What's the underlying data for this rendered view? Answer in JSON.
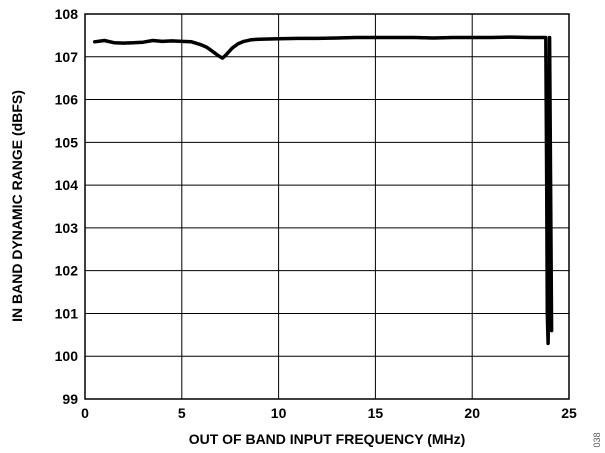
{
  "chart_data": {
    "type": "line",
    "title": "",
    "xlabel": "OUT OF BAND INPUT FREQUENCY (MHz)",
    "ylabel": "IN BAND DYNAMIC RANGE (dBFS)",
    "xlim": [
      0,
      25
    ],
    "ylim": [
      99,
      108
    ],
    "xticks": [
      0,
      5,
      10,
      15,
      20,
      25
    ],
    "yticks": [
      99,
      100,
      101,
      102,
      103,
      104,
      105,
      106,
      107,
      108
    ],
    "grid": true,
    "legend": "none",
    "series": [
      {
        "color": "#000000",
        "x": [
          0.5,
          1.0,
          1.5,
          2.0,
          2.5,
          3.0,
          3.5,
          4.0,
          4.5,
          5.0,
          5.5,
          6.0,
          6.3,
          6.6,
          6.9,
          7.1,
          7.3,
          7.6,
          7.9,
          8.2,
          8.6,
          9.0,
          10.0,
          11.0,
          12.0,
          13.0,
          14.0,
          15.0,
          16.0,
          17.0,
          18.0,
          19.0,
          20.0,
          21.0,
          22.0,
          23.0,
          23.6,
          23.8,
          23.85,
          23.88,
          23.92,
          23.95,
          24.0,
          24.05,
          24.1
        ],
        "y": [
          107.35,
          107.38,
          107.33,
          107.32,
          107.33,
          107.34,
          107.38,
          107.36,
          107.37,
          107.36,
          107.35,
          107.28,
          107.22,
          107.12,
          107.02,
          106.97,
          107.05,
          107.2,
          107.3,
          107.36,
          107.4,
          107.41,
          107.42,
          107.43,
          107.43,
          107.44,
          107.45,
          107.45,
          107.45,
          107.45,
          107.44,
          107.45,
          107.45,
          107.45,
          107.46,
          107.45,
          107.45,
          107.45,
          104.0,
          101.0,
          100.3,
          101.2,
          107.45,
          104.0,
          100.6
        ]
      }
    ]
  },
  "figure_id": "038"
}
